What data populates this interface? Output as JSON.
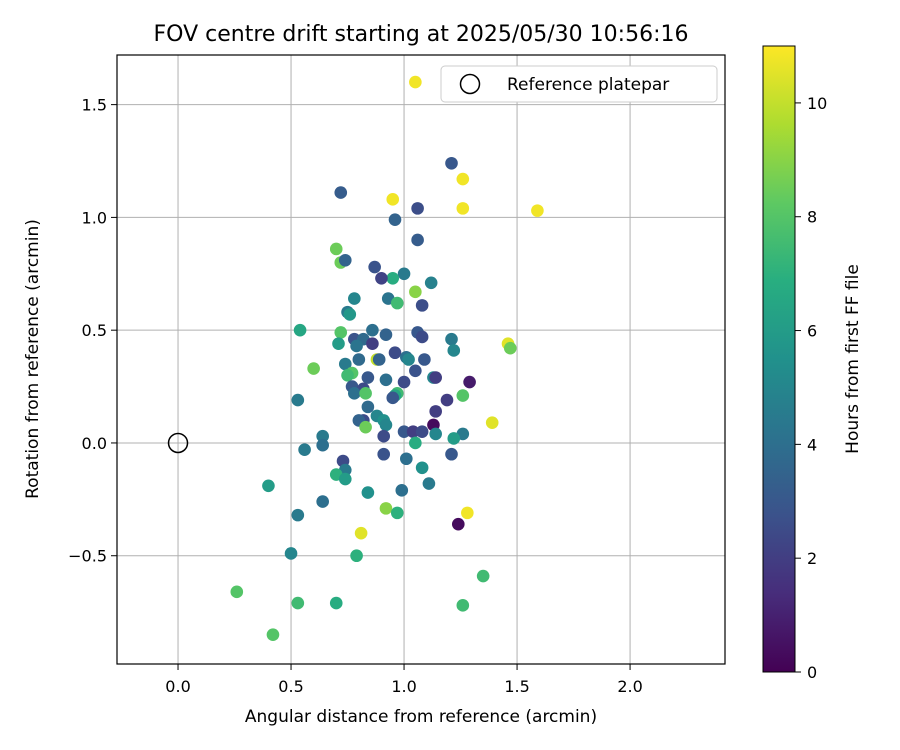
{
  "chart_data": {
    "type": "scatter",
    "title": "FOV centre drift starting at 2025/05/30 10:56:16",
    "xlabel": "Angular distance from reference (arcmin)",
    "ylabel": "Rotation from reference (arcmin)",
    "xlim": [
      -0.27,
      2.42
    ],
    "ylim": [
      -0.98,
      1.72
    ],
    "xticks": [
      0.0,
      0.5,
      1.0,
      1.5,
      2.0
    ],
    "xtick_labels": [
      "0.0",
      "0.5",
      "1.0",
      "1.5",
      "2.0"
    ],
    "yticks": [
      -0.5,
      0.0,
      0.5,
      1.0,
      1.5
    ],
    "ytick_labels": [
      "−0.5",
      "0.0",
      "0.5",
      "1.0",
      "1.5"
    ],
    "grid": true,
    "legend": {
      "position": "top-right",
      "entries": [
        "Reference platepar"
      ]
    },
    "reference_point": {
      "name": "Reference platepar",
      "x": 0.0,
      "y": 0.0
    },
    "colorbar": {
      "label": "Hours from first FF file",
      "range": [
        0,
        11
      ],
      "ticks": [
        0,
        2,
        4,
        6,
        8,
        10
      ],
      "tick_labels": [
        "0",
        "2",
        "4",
        "6",
        "8",
        "10"
      ],
      "colormap": "viridis"
    },
    "points": [
      {
        "x": 1.05,
        "y": 1.6,
        "h": 10.8
      },
      {
        "x": 1.21,
        "y": 1.24,
        "h": 3.0
      },
      {
        "x": 1.26,
        "y": 1.17,
        "h": 10.8
      },
      {
        "x": 0.72,
        "y": 1.11,
        "h": 3.2
      },
      {
        "x": 0.95,
        "y": 1.08,
        "h": 10.8
      },
      {
        "x": 1.06,
        "y": 1.04,
        "h": 2.6
      },
      {
        "x": 1.26,
        "y": 1.04,
        "h": 10.8
      },
      {
        "x": 1.59,
        "y": 1.03,
        "h": 10.8
      },
      {
        "x": 0.96,
        "y": 0.99,
        "h": 3.5
      },
      {
        "x": 1.06,
        "y": 0.9,
        "h": 3.2
      },
      {
        "x": 0.7,
        "y": 0.86,
        "h": 8.5
      },
      {
        "x": 0.72,
        "y": 0.8,
        "h": 8.5
      },
      {
        "x": 0.74,
        "y": 0.81,
        "h": 3.5
      },
      {
        "x": 0.87,
        "y": 0.78,
        "h": 2.8
      },
      {
        "x": 1.0,
        "y": 0.75,
        "h": 4.5
      },
      {
        "x": 0.95,
        "y": 0.73,
        "h": 6.8
      },
      {
        "x": 0.9,
        "y": 0.73,
        "h": 2.2
      },
      {
        "x": 1.12,
        "y": 0.71,
        "h": 4.8
      },
      {
        "x": 1.05,
        "y": 0.67,
        "h": 9.0
      },
      {
        "x": 1.08,
        "y": 0.61,
        "h": 2.6
      },
      {
        "x": 0.78,
        "y": 0.64,
        "h": 5.0
      },
      {
        "x": 0.93,
        "y": 0.64,
        "h": 4.2
      },
      {
        "x": 0.97,
        "y": 0.62,
        "h": 7.5
      },
      {
        "x": 0.75,
        "y": 0.58,
        "h": 4.5
      },
      {
        "x": 0.76,
        "y": 0.57,
        "h": 5.8
      },
      {
        "x": 0.54,
        "y": 0.5,
        "h": 6.5
      },
      {
        "x": 0.72,
        "y": 0.49,
        "h": 8.0
      },
      {
        "x": 0.86,
        "y": 0.5,
        "h": 4.0
      },
      {
        "x": 0.92,
        "y": 0.48,
        "h": 3.5
      },
      {
        "x": 1.06,
        "y": 0.49,
        "h": 3.0
      },
      {
        "x": 1.08,
        "y": 0.47,
        "h": 2.5
      },
      {
        "x": 0.78,
        "y": 0.46,
        "h": 2.8
      },
      {
        "x": 0.82,
        "y": 0.46,
        "h": 3.8
      },
      {
        "x": 0.86,
        "y": 0.44,
        "h": 2.0
      },
      {
        "x": 0.71,
        "y": 0.44,
        "h": 6.0
      },
      {
        "x": 0.79,
        "y": 0.43,
        "h": 4.2
      },
      {
        "x": 1.21,
        "y": 0.46,
        "h": 4.5
      },
      {
        "x": 1.46,
        "y": 0.44,
        "h": 10.5
      },
      {
        "x": 1.47,
        "y": 0.42,
        "h": 8.5
      },
      {
        "x": 1.22,
        "y": 0.41,
        "h": 5.0
      },
      {
        "x": 0.96,
        "y": 0.4,
        "h": 2.5
      },
      {
        "x": 1.01,
        "y": 0.38,
        "h": 4.0
      },
      {
        "x": 1.02,
        "y": 0.37,
        "h": 5.0
      },
      {
        "x": 1.09,
        "y": 0.37,
        "h": 3.0
      },
      {
        "x": 0.88,
        "y": 0.37,
        "h": 10.0
      },
      {
        "x": 0.89,
        "y": 0.37,
        "h": 3.5
      },
      {
        "x": 0.8,
        "y": 0.37,
        "h": 3.8
      },
      {
        "x": 0.74,
        "y": 0.35,
        "h": 4.5
      },
      {
        "x": 0.6,
        "y": 0.33,
        "h": 8.5
      },
      {
        "x": 1.05,
        "y": 0.32,
        "h": 2.8
      },
      {
        "x": 0.77,
        "y": 0.31,
        "h": 8.0
      },
      {
        "x": 0.75,
        "y": 0.3,
        "h": 7.5
      },
      {
        "x": 0.84,
        "y": 0.29,
        "h": 3.0
      },
      {
        "x": 0.92,
        "y": 0.28,
        "h": 4.0
      },
      {
        "x": 1.13,
        "y": 0.29,
        "h": 5.0
      },
      {
        "x": 1.14,
        "y": 0.29,
        "h": 2.0
      },
      {
        "x": 1.0,
        "y": 0.27,
        "h": 2.5
      },
      {
        "x": 1.29,
        "y": 0.27,
        "h": 0.8
      },
      {
        "x": 0.77,
        "y": 0.25,
        "h": 3.0
      },
      {
        "x": 0.82,
        "y": 0.24,
        "h": 2.5
      },
      {
        "x": 0.78,
        "y": 0.22,
        "h": 4.0
      },
      {
        "x": 0.83,
        "y": 0.22,
        "h": 8.0
      },
      {
        "x": 0.97,
        "y": 0.22,
        "h": 7.5
      },
      {
        "x": 0.96,
        "y": 0.21,
        "h": 6.5
      },
      {
        "x": 0.95,
        "y": 0.2,
        "h": 3.0
      },
      {
        "x": 1.26,
        "y": 0.21,
        "h": 8.0
      },
      {
        "x": 1.19,
        "y": 0.19,
        "h": 2.0
      },
      {
        "x": 0.53,
        "y": 0.19,
        "h": 4.5
      },
      {
        "x": 0.84,
        "y": 0.16,
        "h": 3.8
      },
      {
        "x": 1.14,
        "y": 0.14,
        "h": 2.0
      },
      {
        "x": 0.88,
        "y": 0.12,
        "h": 5.0
      },
      {
        "x": 0.91,
        "y": 0.1,
        "h": 5.5
      },
      {
        "x": 0.82,
        "y": 0.1,
        "h": 2.5
      },
      {
        "x": 0.8,
        "y": 0.1,
        "h": 3.5
      },
      {
        "x": 0.92,
        "y": 0.08,
        "h": 5.0
      },
      {
        "x": 1.13,
        "y": 0.08,
        "h": 0.3
      },
      {
        "x": 1.39,
        "y": 0.09,
        "h": 10.5
      },
      {
        "x": 0.83,
        "y": 0.07,
        "h": 8.5
      },
      {
        "x": 1.0,
        "y": 0.05,
        "h": 3.0
      },
      {
        "x": 1.04,
        "y": 0.05,
        "h": 2.0
      },
      {
        "x": 1.08,
        "y": 0.05,
        "h": 2.5
      },
      {
        "x": 1.14,
        "y": 0.04,
        "h": 5.0
      },
      {
        "x": 1.26,
        "y": 0.04,
        "h": 4.5
      },
      {
        "x": 1.22,
        "y": 0.02,
        "h": 6.0
      },
      {
        "x": 0.91,
        "y": 0.03,
        "h": 2.5
      },
      {
        "x": 0.64,
        "y": 0.03,
        "h": 4.5
      },
      {
        "x": 1.05,
        "y": 0.0,
        "h": 6.8
      },
      {
        "x": 0.64,
        "y": -0.01,
        "h": 4.0
      },
      {
        "x": 0.56,
        "y": -0.03,
        "h": 4.5
      },
      {
        "x": 1.21,
        "y": -0.05,
        "h": 3.0
      },
      {
        "x": 0.91,
        "y": -0.05,
        "h": 2.8
      },
      {
        "x": 1.01,
        "y": -0.07,
        "h": 4.0
      },
      {
        "x": 0.73,
        "y": -0.08,
        "h": 2.5
      },
      {
        "x": 1.08,
        "y": -0.11,
        "h": 5.5
      },
      {
        "x": 0.74,
        "y": -0.12,
        "h": 4.5
      },
      {
        "x": 0.7,
        "y": -0.14,
        "h": 7.0
      },
      {
        "x": 0.74,
        "y": -0.16,
        "h": 6.0
      },
      {
        "x": 1.11,
        "y": -0.18,
        "h": 4.5
      },
      {
        "x": 0.4,
        "y": -0.19,
        "h": 6.0
      },
      {
        "x": 0.99,
        "y": -0.21,
        "h": 4.0
      },
      {
        "x": 0.84,
        "y": -0.22,
        "h": 5.5
      },
      {
        "x": 0.64,
        "y": -0.26,
        "h": 4.0
      },
      {
        "x": 0.92,
        "y": -0.29,
        "h": 9.0
      },
      {
        "x": 0.97,
        "y": -0.31,
        "h": 7.0
      },
      {
        "x": 1.28,
        "y": -0.31,
        "h": 10.8
      },
      {
        "x": 0.53,
        "y": -0.32,
        "h": 4.5
      },
      {
        "x": 1.24,
        "y": -0.36,
        "h": 0.3
      },
      {
        "x": 0.81,
        "y": -0.4,
        "h": 10.5
      },
      {
        "x": 0.5,
        "y": -0.49,
        "h": 5.0
      },
      {
        "x": 0.79,
        "y": -0.5,
        "h": 7.0
      },
      {
        "x": 1.35,
        "y": -0.59,
        "h": 7.5
      },
      {
        "x": 0.26,
        "y": -0.66,
        "h": 8.0
      },
      {
        "x": 0.53,
        "y": -0.71,
        "h": 7.5
      },
      {
        "x": 0.7,
        "y": -0.71,
        "h": 6.8
      },
      {
        "x": 1.26,
        "y": -0.72,
        "h": 7.5
      },
      {
        "x": 0.42,
        "y": -0.85,
        "h": 8.0
      }
    ]
  }
}
